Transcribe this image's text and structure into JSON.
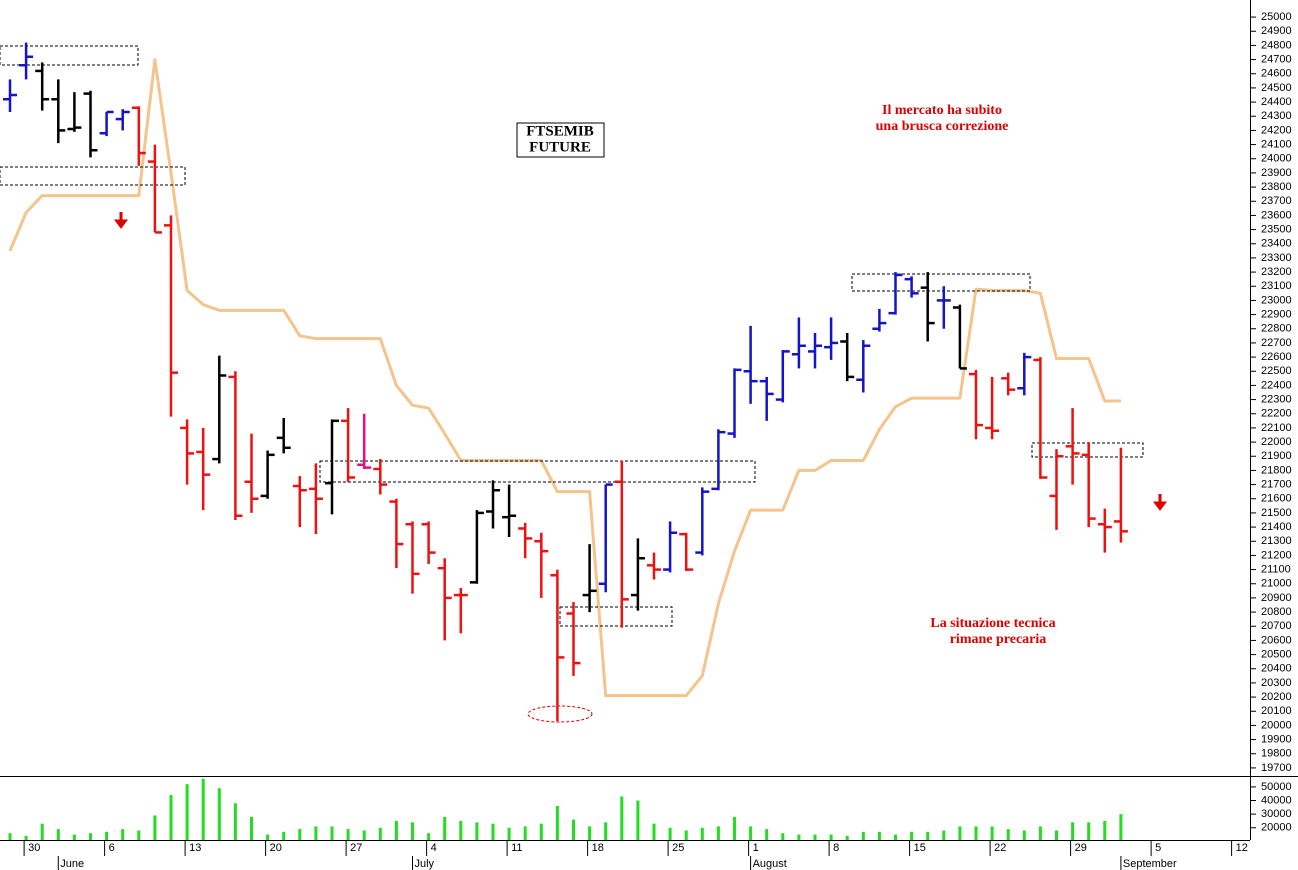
{
  "chart_data": {
    "type": "ohlc",
    "title_box": [
      "FTSEMIB",
      "FUTURE"
    ],
    "annotations": [
      [
        "Il mercato ha subito",
        "una brusca correzione"
      ],
      [
        "La situazione tecnica",
        "rimane precaria"
      ]
    ],
    "categories": [
      null,
      "30",
      null,
      null,
      null,
      null,
      "6",
      null,
      null,
      null,
      null,
      "13",
      null,
      null,
      null,
      null,
      "20",
      null,
      null,
      null,
      null,
      "27",
      null,
      null,
      null,
      null,
      "4",
      null,
      null,
      null,
      null,
      "11",
      null,
      null,
      null,
      null,
      "18",
      null,
      null,
      null,
      null,
      "25",
      null,
      null,
      null,
      null,
      "1",
      null,
      null,
      null,
      null,
      "8",
      null,
      null,
      null,
      null,
      "15",
      null,
      null,
      null,
      null,
      "22",
      null,
      null,
      null,
      null,
      "29",
      null,
      null,
      null,
      null,
      "5",
      null,
      null,
      null,
      null,
      "12"
    ],
    "month_labels": [
      null,
      null,
      null,
      "June",
      null,
      null,
      null,
      null,
      null,
      null,
      null,
      null,
      null,
      null,
      null,
      null,
      null,
      null,
      null,
      null,
      null,
      null,
      null,
      null,
      null,
      "July",
      null,
      null,
      null,
      null,
      null,
      null,
      null,
      null,
      null,
      null,
      null,
      null,
      null,
      null,
      null,
      null,
      null,
      null,
      null,
      null,
      "August",
      null,
      null,
      null,
      null,
      null,
      null,
      null,
      null,
      null,
      null,
      null,
      null,
      null,
      null,
      null,
      null,
      null,
      null,
      null,
      null,
      null,
      null,
      "September",
      null,
      null,
      null,
      null,
      null,
      null,
      null
    ],
    "open": [
      24420,
      24660,
      24620,
      24420,
      24210,
      24460,
      24180,
      24280,
      24360,
      23980,
      23530,
      22100,
      21930,
      21880,
      22460,
      21720,
      21620,
      22030,
      21690,
      21670,
      21710,
      22150,
      21840,
      21810,
      21580,
      21420,
      21420,
      21110,
      20920,
      21010,
      21510,
      21470,
      21390,
      21300,
      21060,
      20790,
      20920,
      21000,
      21720,
      20920,
      21130,
      21100,
      21350,
      21220,
      21670,
      22060,
      22500,
      22430,
      22300,
      22620,
      22640,
      22670,
      22710,
      22440,
      22800,
      22910,
      23150,
      23090,
      23000,
      22950,
      22480,
      22100,
      22450,
      22380,
      22580,
      21620,
      21970,
      21910,
      21420,
      21440,
      null,
      null,
      null,
      null,
      null,
      null,
      null
    ],
    "high": [
      24560,
      24820,
      24680,
      24560,
      24470,
      24480,
      24330,
      24350,
      24370,
      24100,
      23600,
      22160,
      22100,
      22610,
      22500,
      22060,
      21940,
      22170,
      21760,
      21850,
      22160,
      22240,
      22200,
      21880,
      21600,
      21440,
      21440,
      21180,
      20970,
      21520,
      21730,
      21700,
      21430,
      21360,
      21100,
      20870,
      21280,
      21700,
      21870,
      21320,
      21220,
      21440,
      21360,
      21680,
      22090,
      22520,
      22820,
      22460,
      22650,
      22880,
      22770,
      22880,
      22770,
      22720,
      22940,
      23200,
      23170,
      23200,
      23100,
      22970,
      22510,
      22460,
      22490,
      22630,
      22600,
      21950,
      22240,
      22000,
      21530,
      21960,
      null,
      null,
      null,
      null,
      null,
      null,
      null
    ],
    "low": [
      24330,
      24560,
      24340,
      24110,
      24190,
      24010,
      24160,
      24200,
      23950,
      23480,
      22180,
      21700,
      21520,
      21850,
      21450,
      21500,
      21600,
      21920,
      21400,
      21350,
      21490,
      21720,
      21810,
      21630,
      21110,
      20930,
      21140,
      20600,
      20650,
      21000,
      21390,
      21330,
      21180,
      20900,
      20030,
      20350,
      20800,
      20940,
      20690,
      20810,
      21030,
      21080,
      21090,
      21200,
      21660,
      22030,
      22270,
      22150,
      22280,
      22520,
      22520,
      22580,
      22430,
      22350,
      22780,
      22900,
      23020,
      22710,
      22800,
      22520,
      22020,
      22020,
      22330,
      22330,
      21740,
      21380,
      21700,
      21400,
      21220,
      21290,
      null,
      null,
      null,
      null,
      null,
      null,
      null
    ],
    "close": [
      24450,
      24720,
      24420,
      24200,
      24220,
      24060,
      24330,
      24330,
      24040,
      23480,
      22490,
      21920,
      21770,
      22470,
      21480,
      21600,
      21910,
      21960,
      21660,
      21600,
      22150,
      21750,
      21820,
      21700,
      21280,
      21070,
      21220,
      20900,
      20920,
      21500,
      21660,
      21480,
      21320,
      21230,
      20480,
      20440,
      20950,
      21700,
      20890,
      21180,
      21100,
      21360,
      21100,
      21650,
      22070,
      22510,
      22430,
      22340,
      22640,
      22680,
      22680,
      22700,
      22460,
      22680,
      22840,
      23180,
      23050,
      22840,
      23000,
      22520,
      22120,
      22080,
      22370,
      22600,
      21750,
      21900,
      21920,
      21460,
      21400,
      21370,
      null,
      null,
      null,
      null,
      null,
      null,
      null
    ],
    "bar_colors": [
      "#1414c8",
      "#1414c8",
      "#000000",
      "#000000",
      "#000000",
      "#000000",
      "#1414c8",
      "#1414c8",
      "#ee1111",
      "#ee1111",
      "#ee1111",
      "#ee1111",
      "#ee1111",
      "#000000",
      "#ee1111",
      "#ee1111",
      "#000000",
      "#000000",
      "#ee1111",
      "#ee1111",
      "#000000",
      "#ee1111",
      "#e0108c",
      "#ee1111",
      "#ee1111",
      "#ee1111",
      "#ee1111",
      "#ee1111",
      "#ee1111",
      "#000000",
      "#000000",
      "#000000",
      "#ee1111",
      "#ee1111",
      "#ee1111",
      "#ee1111",
      "#000000",
      "#1414c8",
      "#ee1111",
      "#000000",
      "#ee1111",
      "#1414c8",
      "#ee1111",
      "#1414c8",
      "#1414c8",
      "#1414c8",
      "#1414c8",
      "#1414c8",
      "#1414c8",
      "#1414c8",
      "#1414c8",
      "#1414c8",
      "#000000",
      "#1414c8",
      "#1414c8",
      "#1414c8",
      "#1414c8",
      "#000000",
      "#1414c8",
      "#000000",
      "#ee1111",
      "#ee1111",
      "#ee1111",
      "#1414c8",
      "#ee1111",
      "#ee1111",
      "#ee1111",
      "#ee1111",
      "#ee1111",
      "#ee1111",
      null,
      null,
      null,
      null,
      null,
      null,
      null
    ],
    "line": {
      "color": "#f5c48c",
      "values": [
        23350,
        23620,
        23740,
        23740,
        23740,
        23740,
        23740,
        23740,
        23740,
        24700,
        23900,
        23070,
        22970,
        22930,
        22930,
        22930,
        22930,
        22930,
        22750,
        22730,
        22730,
        22730,
        22730,
        22730,
        22400,
        22260,
        22240,
        22060,
        21870,
        21870,
        21870,
        21870,
        21870,
        21870,
        21650,
        21650,
        21650,
        20210,
        20210,
        20210,
        20210,
        20210,
        20210,
        20350,
        20860,
        21230,
        21520,
        21520,
        21520,
        21800,
        21800,
        21870,
        21870,
        21870,
        22090,
        22250,
        22310,
        22310,
        22310,
        22310,
        23080,
        23070,
        23070,
        23070,
        23050,
        22590,
        22590,
        22590,
        22290,
        22290,
        null,
        null,
        null,
        null,
        null,
        null,
        null
      ]
    },
    "ylim": [
      19650,
      25050
    ],
    "yticks": [
      19700,
      19800,
      19900,
      20000,
      20100,
      20200,
      20300,
      20400,
      20500,
      20600,
      20700,
      20800,
      20900,
      21000,
      21100,
      21200,
      21300,
      21400,
      21500,
      21600,
      21700,
      21800,
      21900,
      22000,
      22100,
      22200,
      22300,
      22400,
      22500,
      22600,
      22700,
      22800,
      22900,
      23000,
      23100,
      23200,
      23300,
      23400,
      23500,
      23600,
      23700,
      23800,
      23900,
      24000,
      24100,
      24200,
      24300,
      24400,
      24500,
      24600,
      24700,
      24800,
      24900,
      25000
    ],
    "volume": {
      "color": "#22dd22",
      "ylim": [
        11000,
        58000
      ],
      "yticks": [
        20000,
        30000,
        40000,
        50000
      ],
      "values": [
        16000,
        14000,
        23000,
        19000,
        15000,
        16000,
        17000,
        19000,
        18000,
        29000,
        44000,
        52000,
        56000,
        49000,
        38000,
        28000,
        15000,
        17000,
        19000,
        21000,
        21000,
        19000,
        18000,
        20000,
        25000,
        24000,
        16000,
        28000,
        25000,
        24000,
        23000,
        20000,
        21000,
        23000,
        36000,
        26000,
        21000,
        24000,
        43000,
        40000,
        23000,
        20000,
        18000,
        20000,
        21000,
        28000,
        21000,
        19000,
        16000,
        15000,
        15000,
        15000,
        14000,
        17000,
        17000,
        15000,
        17000,
        17000,
        18000,
        21000,
        21000,
        21000,
        19000,
        18000,
        21000,
        18000,
        24000,
        24000,
        25000,
        30000,
        null,
        null,
        null,
        null,
        null,
        null,
        null
      ]
    }
  }
}
